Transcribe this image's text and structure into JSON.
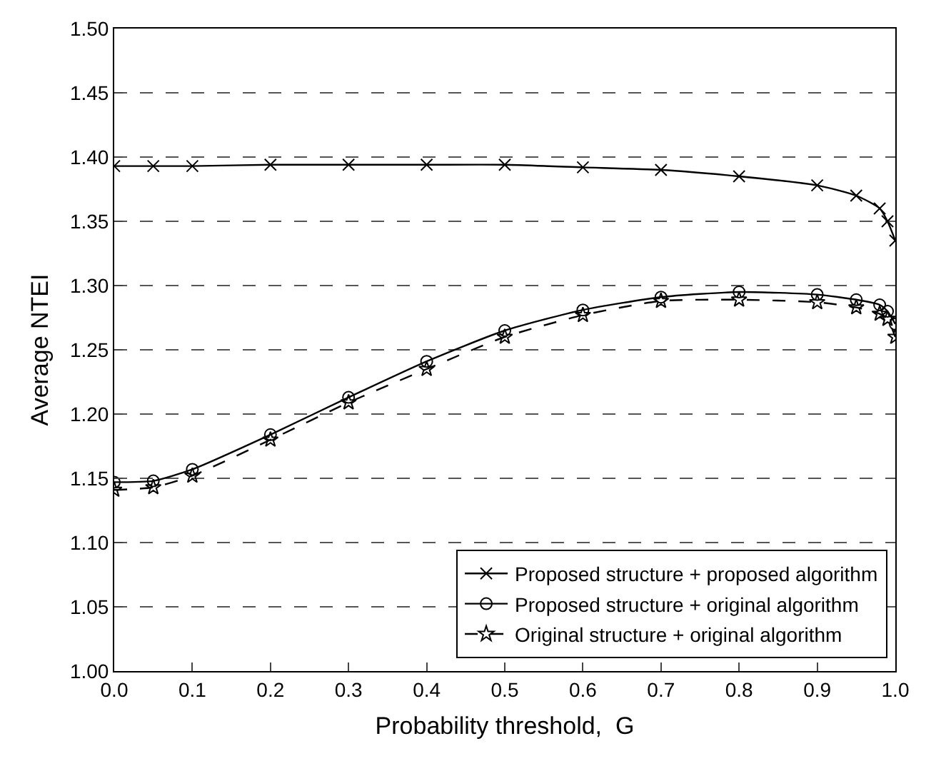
{
  "chart_data": {
    "type": "line",
    "xlabel": "Probability threshold,  G",
    "ylabel": "Average NTEI",
    "x": [
      0,
      0.05,
      0.1,
      0.2,
      0.3,
      0.4,
      0.5,
      0.6,
      0.7,
      0.8,
      0.9,
      0.95,
      0.98,
      0.99,
      1.0
    ],
    "series": [
      {
        "name": "Proposed structure + proposed algorithm",
        "color": "#000000",
        "marker": "cross",
        "line_style": "solid",
        "values": [
          1.393,
          1.393,
          1.393,
          1.394,
          1.394,
          1.394,
          1.394,
          1.392,
          1.39,
          1.385,
          1.378,
          1.37,
          1.36,
          1.35,
          1.335
        ]
      },
      {
        "name": "Proposed structure + original algorithm",
        "color": "#000000",
        "marker": "circle",
        "line_style": "solid",
        "values": [
          1.147,
          1.148,
          1.157,
          1.184,
          1.213,
          1.241,
          1.265,
          1.281,
          1.291,
          1.295,
          1.293,
          1.289,
          1.285,
          1.28,
          1.27
        ]
      },
      {
        "name": "Original structure + original algorithm",
        "color": "#000000",
        "marker": "star",
        "line_style": "dashed",
        "values": [
          1.141,
          1.143,
          1.152,
          1.18,
          1.209,
          1.235,
          1.26,
          1.277,
          1.288,
          1.289,
          1.287,
          1.283,
          1.278,
          1.274,
          1.26
        ]
      }
    ],
    "xlim": [
      0,
      1
    ],
    "ylim": [
      1,
      1.5
    ],
    "xticks": [
      {
        "value": 0,
        "label": "0.0"
      },
      0.1,
      0.2,
      0.3,
      0.4,
      0.5,
      0.6,
      0.7,
      0.8,
      0.9,
      {
        "value": 1,
        "label": "1.0"
      }
    ],
    "yticks": [
      {
        "value": 1,
        "label": "1.00"
      },
      1.05,
      {
        "value": 1.1,
        "label": "1.10"
      },
      1.15,
      {
        "value": 1.2,
        "label": "1.20"
      },
      1.25,
      {
        "value": 1.3,
        "label": "1.30"
      },
      1.35,
      {
        "value": 1.4,
        "label": "1.40"
      },
      1.45,
      {
        "value": 1.5,
        "label": "1.50"
      }
    ],
    "grid": "y",
    "legend": "bottom right"
  }
}
